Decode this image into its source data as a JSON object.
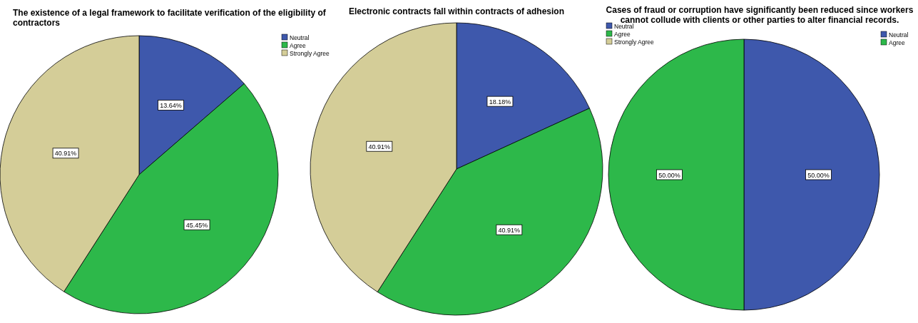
{
  "chart_data": [
    {
      "type": "pie",
      "title": "The existence of a legal framework to facilitate verification of the eligibility of contractors",
      "categories": [
        "Neutral",
        "Agree",
        "Strongly Agree"
      ],
      "values": [
        13.64,
        45.45,
        40.91
      ],
      "value_labels": [
        "13.64%",
        "45.45%",
        "40.91%"
      ],
      "colors": [
        "#3e58ac",
        "#2db84a",
        "#d4cd98"
      ],
      "legend": "top right"
    },
    {
      "type": "pie",
      "title": "Electronic contracts fall within contracts of adhesion",
      "categories": [
        "Neutral",
        "Agree",
        "Strongly Agree"
      ],
      "values": [
        18.18,
        40.91,
        40.91
      ],
      "value_labels": [
        "18.18%",
        "40.91%",
        "40.91%"
      ],
      "colors": [
        "#3e58ac",
        "#2db84a",
        "#d4cd98"
      ],
      "legend": "top right"
    },
    {
      "type": "pie",
      "title": "Cases of fraud or corruption have significantly been reduced since workers cannot collude with clients or other parties to alter financial records.",
      "categories": [
        "Neutral",
        "Agree"
      ],
      "values": [
        50.0,
        50.0
      ],
      "value_labels": [
        "50.00%",
        "50.00%"
      ],
      "colors": [
        "#3e58ac",
        "#2db84a"
      ],
      "legend": "top right"
    }
  ]
}
